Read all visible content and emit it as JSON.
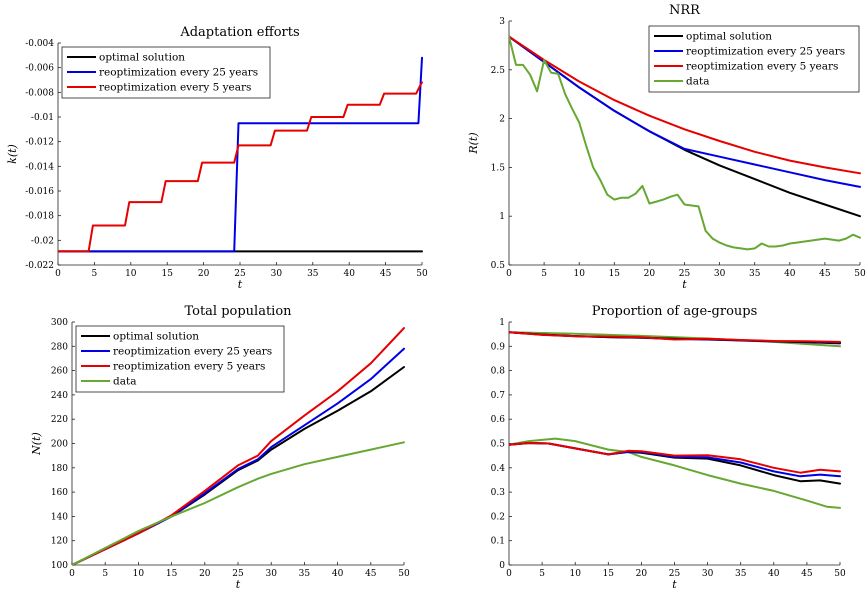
{
  "colors": {
    "optimal": "#000000",
    "reopt25": "#0000e6",
    "reopt5": "#e60000",
    "data": "#66a832"
  },
  "chart_data": [
    {
      "type": "line",
      "title": "Adaptation efforts",
      "xlabel": "t",
      "ylabel": "k(t)",
      "xlim": [
        0,
        50
      ],
      "ylim": [
        -0.022,
        -0.004
      ],
      "xticks": [
        0,
        5,
        10,
        15,
        20,
        25,
        30,
        35,
        40,
        45,
        50
      ],
      "yticks": [
        -0.022,
        -0.02,
        -0.018,
        -0.016,
        -0.014,
        -0.012,
        -0.01,
        -0.008,
        -0.006,
        -0.004
      ],
      "ytick_labels": [
        "-0.022",
        "-0.02",
        "-0.018",
        "-0.016",
        "-0.014",
        "-0.012",
        "-0.01",
        "-0.008",
        "-0.006",
        "-0.004"
      ],
      "legend": "top-left",
      "series": [
        {
          "name": "optimal solution",
          "color": "#000000",
          "x": [
            0,
            50
          ],
          "y": [
            -0.0209,
            -0.0209
          ]
        },
        {
          "name": "reoptimization every 25 years",
          "color": "#0000e6",
          "x": [
            0,
            24.2,
            24.8,
            49.5,
            50
          ],
          "y": [
            -0.0209,
            -0.0209,
            -0.0105,
            -0.0105,
            -0.0052
          ]
        },
        {
          "name": "reoptimization every 5 years",
          "color": "#e60000",
          "x": [
            0,
            4.2,
            4.8,
            9.2,
            9.8,
            14.2,
            14.8,
            19.2,
            19.8,
            24.2,
            24.8,
            29.2,
            29.8,
            34.2,
            34.8,
            39.2,
            39.8,
            44.2,
            44.8,
            49.2,
            49.8,
            50
          ],
          "y": [
            -0.0209,
            -0.0209,
            -0.0188,
            -0.0188,
            -0.0169,
            -0.0169,
            -0.0152,
            -0.0152,
            -0.0137,
            -0.0137,
            -0.0123,
            -0.0123,
            -0.0111,
            -0.0111,
            -0.01,
            -0.01,
            -0.009,
            -0.009,
            -0.0081,
            -0.0081,
            -0.0074,
            -0.0072
          ]
        }
      ]
    },
    {
      "type": "line",
      "title": "NRR",
      "xlabel": "t",
      "ylabel": "R(t)",
      "xlim": [
        0,
        50
      ],
      "ylim": [
        0.5,
        3
      ],
      "xticks": [
        0,
        5,
        10,
        15,
        20,
        25,
        30,
        35,
        40,
        45,
        50
      ],
      "yticks": [
        0.5,
        1,
        1.5,
        2,
        2.5,
        3
      ],
      "ytick_labels": [
        "0.5",
        "1",
        "1.5",
        "2",
        "2.5",
        "3"
      ],
      "legend": "top-right",
      "series": [
        {
          "name": "optimal solution",
          "color": "#000000",
          "x": [
            0,
            5,
            10,
            15,
            20,
            25,
            30,
            35,
            40,
            45,
            50
          ],
          "y": [
            2.84,
            2.58,
            2.32,
            2.08,
            1.87,
            1.68,
            1.52,
            1.38,
            1.24,
            1.12,
            1.0
          ]
        },
        {
          "name": "reoptimization every 25 years",
          "color": "#0000e6",
          "x": [
            0,
            5,
            10,
            15,
            20,
            25,
            30,
            35,
            40,
            45,
            50
          ],
          "y": [
            2.84,
            2.58,
            2.32,
            2.08,
            1.87,
            1.69,
            1.61,
            1.53,
            1.45,
            1.37,
            1.3
          ]
        },
        {
          "name": "reoptimization every 5 years",
          "color": "#e60000",
          "x": [
            0,
            5,
            10,
            15,
            20,
            25,
            30,
            35,
            40,
            45,
            50
          ],
          "y": [
            2.84,
            2.6,
            2.38,
            2.19,
            2.03,
            1.89,
            1.77,
            1.66,
            1.57,
            1.5,
            1.44
          ]
        },
        {
          "name": "data",
          "color": "#66a832",
          "x": [
            0,
            1,
            2,
            3,
            4,
            5,
            6,
            7,
            8,
            9,
            10,
            11,
            12,
            13,
            14,
            15,
            16,
            17,
            18,
            19,
            20,
            21,
            22,
            23,
            24,
            25,
            26,
            27,
            28,
            29,
            30,
            31,
            32,
            33,
            34,
            35,
            36,
            37,
            38,
            39,
            40,
            41,
            42,
            43,
            44,
            45,
            46,
            47,
            48,
            49,
            50
          ],
          "y": [
            2.84,
            2.55,
            2.55,
            2.45,
            2.28,
            2.6,
            2.47,
            2.46,
            2.25,
            2.1,
            1.96,
            1.72,
            1.5,
            1.37,
            1.22,
            1.17,
            1.19,
            1.19,
            1.23,
            1.31,
            1.13,
            1.15,
            1.17,
            1.2,
            1.22,
            1.12,
            1.11,
            1.1,
            0.85,
            0.77,
            0.73,
            0.7,
            0.68,
            0.67,
            0.66,
            0.67,
            0.72,
            0.69,
            0.69,
            0.7,
            0.72,
            0.73,
            0.74,
            0.75,
            0.76,
            0.77,
            0.76,
            0.75,
            0.77,
            0.81,
            0.78
          ]
        }
      ]
    },
    {
      "type": "line",
      "title": "Total population",
      "xlabel": "t",
      "ylabel": "N(t)",
      "xlim": [
        0,
        50
      ],
      "ylim": [
        100,
        300
      ],
      "xticks": [
        0,
        5,
        10,
        15,
        20,
        25,
        30,
        35,
        40,
        45,
        50
      ],
      "yticks": [
        100,
        120,
        140,
        160,
        180,
        200,
        220,
        240,
        260,
        280,
        300
      ],
      "ytick_labels": [
        "100",
        "120",
        "140",
        "160",
        "180",
        "200",
        "220",
        "240",
        "260",
        "280",
        "300"
      ],
      "legend": "top-left",
      "series": [
        {
          "name": "optimal solution",
          "color": "#000000",
          "x": [
            0,
            5,
            10,
            15,
            20,
            25,
            28,
            30,
            35,
            40,
            45,
            50
          ],
          "y": [
            100,
            113,
            126,
            140,
            158,
            178,
            186,
            195,
            212,
            227,
            243,
            263
          ]
        },
        {
          "name": "reoptimization every 25 years",
          "color": "#0000e6",
          "x": [
            0,
            5,
            10,
            15,
            20,
            25,
            28,
            30,
            35,
            40,
            45,
            50
          ],
          "y": [
            100,
            113,
            126,
            140,
            159,
            179,
            187,
            197,
            215,
            233,
            253,
            278
          ]
        },
        {
          "name": "reoptimization every 5 years",
          "color": "#e60000",
          "x": [
            0,
            5,
            10,
            15,
            20,
            25,
            28,
            30,
            35,
            40,
            45,
            50
          ],
          "y": [
            100,
            113,
            126,
            141,
            161,
            182,
            190,
            202,
            223,
            243,
            266,
            295
          ]
        },
        {
          "name": "data",
          "color": "#66a832",
          "x": [
            0,
            5,
            10,
            15,
            20,
            25,
            28,
            30,
            35,
            40,
            45,
            50
          ],
          "y": [
            100,
            114,
            128,
            140,
            151,
            164,
            171,
            175,
            183,
            189,
            195,
            201
          ]
        }
      ]
    },
    {
      "type": "line",
      "title": "Proportion of age-groups",
      "xlabel": "t",
      "ylabel": "",
      "xlim": [
        0,
        50
      ],
      "ylim": [
        0,
        1
      ],
      "xticks": [
        0,
        5,
        10,
        15,
        20,
        25,
        30,
        35,
        40,
        45,
        50
      ],
      "yticks": [
        0,
        0.1,
        0.2,
        0.3,
        0.4,
        0.5,
        0.6,
        0.7,
        0.8,
        0.9,
        1
      ],
      "ytick_labels": [
        "0",
        "0.1",
        "0.2",
        "0.3",
        "0.4",
        "0.5",
        "0.6",
        "0.7",
        "0.8",
        "0.9",
        "1"
      ],
      "legend": "none",
      "series": [
        {
          "color": "#66a832",
          "x": [
            0,
            10,
            20,
            30,
            40,
            50
          ],
          "y": [
            0.958,
            0.952,
            0.943,
            0.932,
            0.918,
            0.9
          ]
        },
        {
          "color": "#0000e6",
          "x": [
            0,
            5,
            10,
            15,
            20,
            25,
            30,
            35,
            40,
            45,
            50
          ],
          "y": [
            0.958,
            0.948,
            0.942,
            0.938,
            0.935,
            0.93,
            0.928,
            0.924,
            0.92,
            0.917,
            0.912
          ]
        },
        {
          "color": "#000000",
          "x": [
            0,
            5,
            10,
            15,
            20,
            25,
            30,
            35,
            40,
            45,
            50
          ],
          "y": [
            0.958,
            0.948,
            0.942,
            0.938,
            0.936,
            0.931,
            0.929,
            0.925,
            0.921,
            0.918,
            0.915
          ]
        },
        {
          "color": "#e60000",
          "x": [
            0,
            5,
            10,
            15,
            20,
            25,
            30,
            35,
            40,
            45,
            50
          ],
          "y": [
            0.958,
            0.947,
            0.941,
            0.94,
            0.937,
            0.928,
            0.931,
            0.926,
            0.922,
            0.921,
            0.918
          ]
        },
        {
          "color": "#66a832",
          "x": [
            0,
            3,
            7,
            10,
            15,
            18,
            20,
            25,
            30,
            35,
            40,
            45,
            48,
            50
          ],
          "y": [
            0.495,
            0.51,
            0.52,
            0.51,
            0.475,
            0.465,
            0.445,
            0.41,
            0.37,
            0.335,
            0.305,
            0.265,
            0.24,
            0.235
          ]
        },
        {
          "color": "#000000",
          "x": [
            0,
            3,
            6,
            10,
            15,
            18,
            20,
            25,
            30,
            35,
            40,
            44,
            47,
            50
          ],
          "y": [
            0.495,
            0.502,
            0.5,
            0.48,
            0.455,
            0.465,
            0.462,
            0.442,
            0.438,
            0.41,
            0.37,
            0.345,
            0.348,
            0.335
          ]
        },
        {
          "color": "#0000e6",
          "x": [
            0,
            3,
            6,
            10,
            15,
            18,
            20,
            25,
            30,
            35,
            40,
            44,
            47,
            50
          ],
          "y": [
            0.495,
            0.502,
            0.5,
            0.48,
            0.455,
            0.466,
            0.465,
            0.445,
            0.443,
            0.422,
            0.385,
            0.365,
            0.372,
            0.365
          ]
        },
        {
          "color": "#e60000",
          "x": [
            0,
            3,
            6,
            10,
            15,
            18,
            20,
            25,
            30,
            35,
            40,
            44,
            47,
            50
          ],
          "y": [
            0.495,
            0.502,
            0.5,
            0.48,
            0.455,
            0.47,
            0.468,
            0.45,
            0.452,
            0.435,
            0.4,
            0.38,
            0.392,
            0.385
          ]
        }
      ]
    }
  ]
}
